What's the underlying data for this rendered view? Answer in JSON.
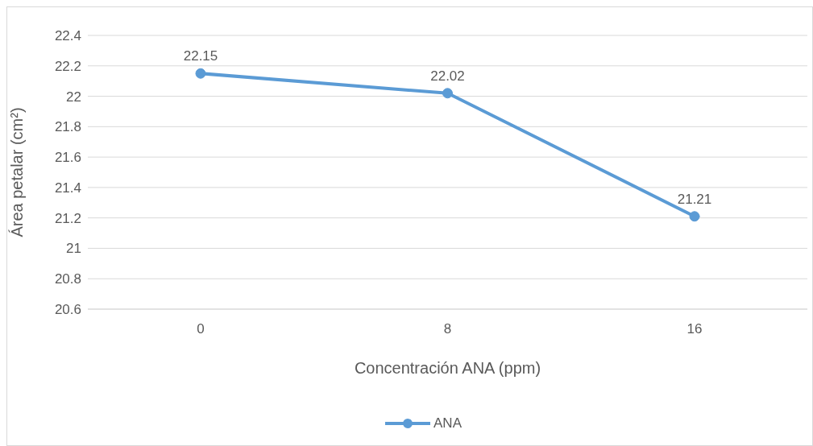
{
  "chart_data": {
    "type": "line",
    "xlabel": "Concentración ANA (ppm)",
    "ylabel": "Área petalar (cm²)",
    "categories": [
      "0",
      "8",
      "16"
    ],
    "series": [
      {
        "name": "ANA",
        "color": "#5b9bd5",
        "values": [
          22.15,
          22.02,
          21.21
        ]
      }
    ],
    "ylim": [
      20.6,
      22.4
    ],
    "yticks": [
      20.6,
      20.8,
      21,
      21.2,
      21.4,
      21.6,
      21.8,
      22,
      22.2,
      22.4
    ],
    "grid": "y",
    "legend": "bottom",
    "marker": "circle",
    "data_labels": true
  }
}
